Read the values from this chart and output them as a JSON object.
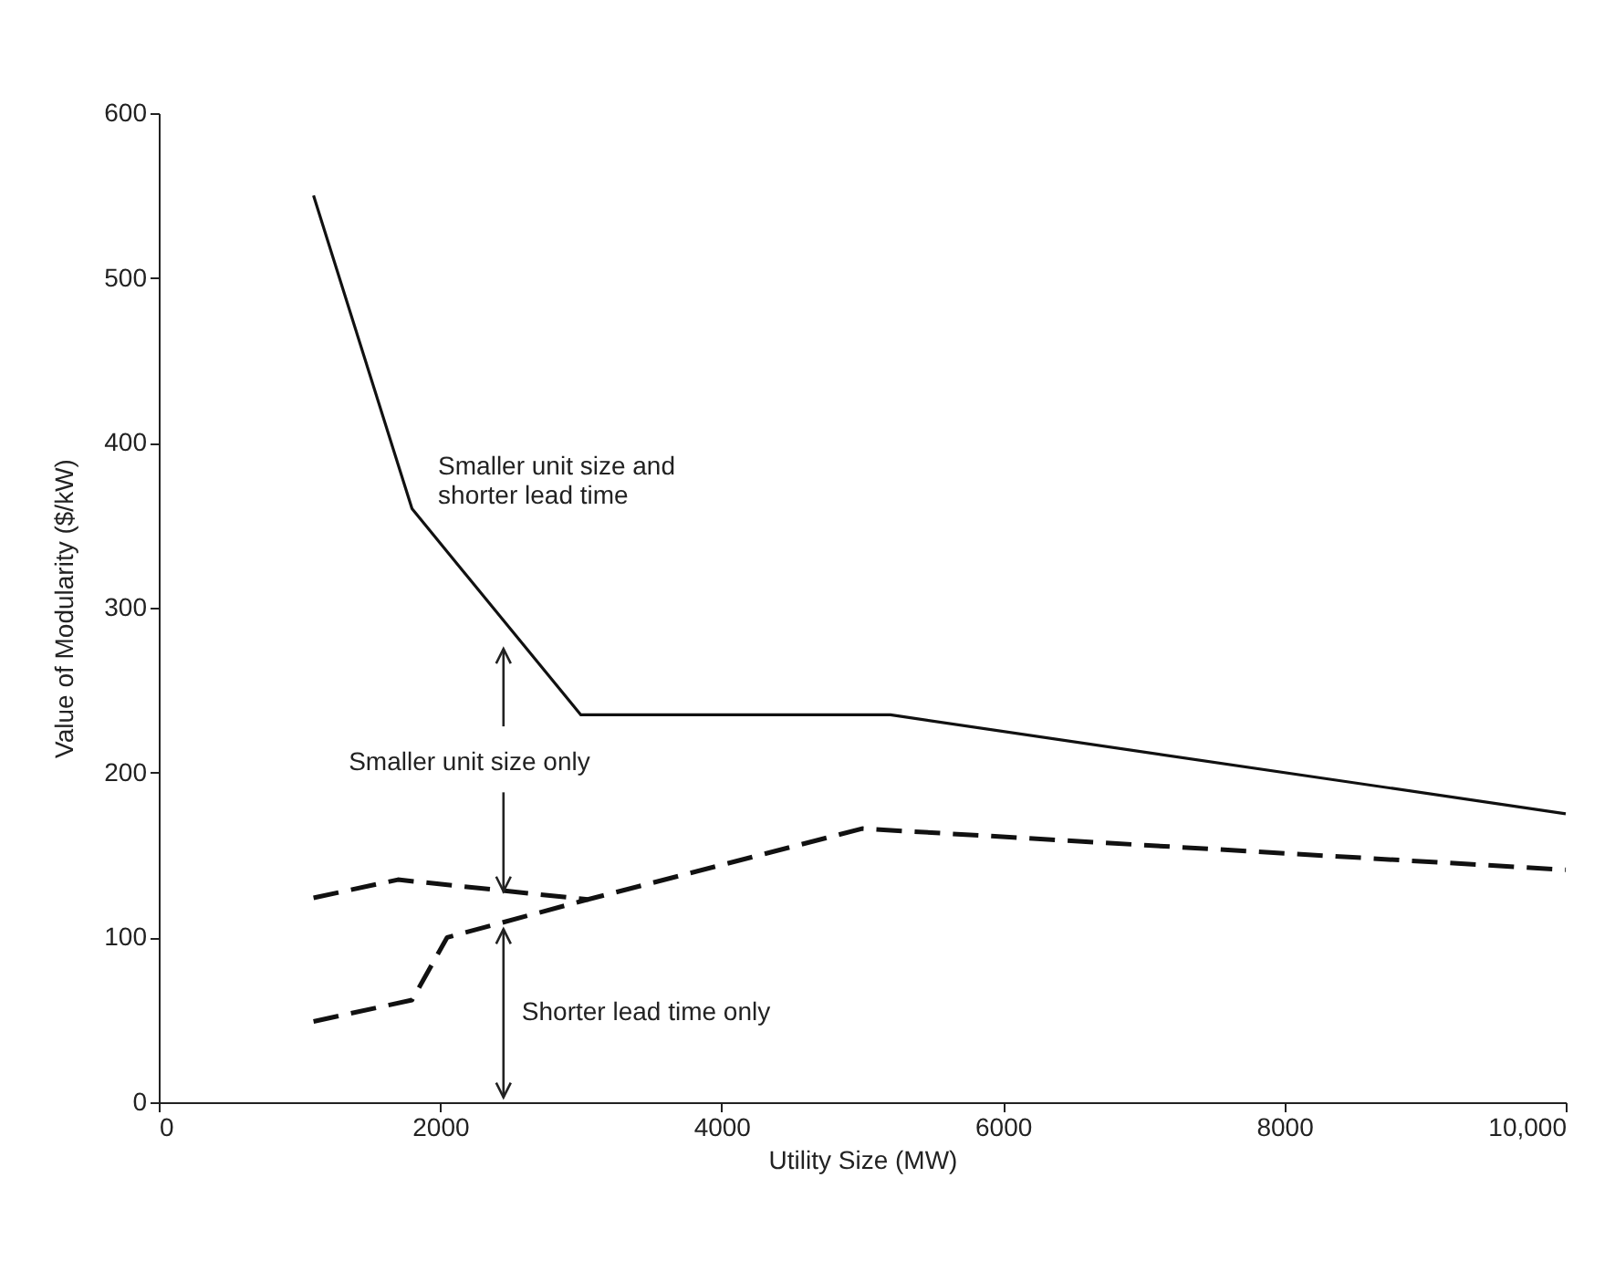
{
  "chart_data": {
    "type": "line",
    "xlabel": "Utility Size (MW)",
    "ylabel": "Value of Modularity ($/kW)",
    "xlim": [
      0,
      10000
    ],
    "xticks": [
      0,
      2000,
      4000,
      6000,
      8000,
      {
        "value": 10000,
        "label": "10,000"
      }
    ],
    "ylim": [
      0,
      600
    ],
    "yticks": [
      0,
      100,
      200,
      300,
      400,
      500,
      600
    ],
    "grid": false,
    "series": [
      {
        "color": "#111111",
        "line_style": "solid",
        "x": [
          1100,
          1800,
          3000,
          5200,
          10000
        ],
        "values": [
          550,
          360,
          235,
          235,
          175
        ]
      },
      {
        "color": "#111111",
        "line_style": "dashed",
        "x": [
          1100,
          1700,
          3050,
          5000,
          10000
        ],
        "values": [
          124,
          135,
          123,
          166,
          141
        ]
      },
      {
        "color": "#111111",
        "line_style": "dashed",
        "x": [
          1100,
          1800,
          2050,
          3050
        ],
        "values": [
          49,
          62,
          100,
          123
        ]
      }
    ],
    "annotations": [
      "Smaller unit size and\nshorter lead time",
      {
        "text": "Smaller unit size only",
        "x": 2450,
        "y": 128
      },
      {
        "text": "Shorter lead time only",
        "x": 2450,
        "y": 109
      }
    ]
  }
}
